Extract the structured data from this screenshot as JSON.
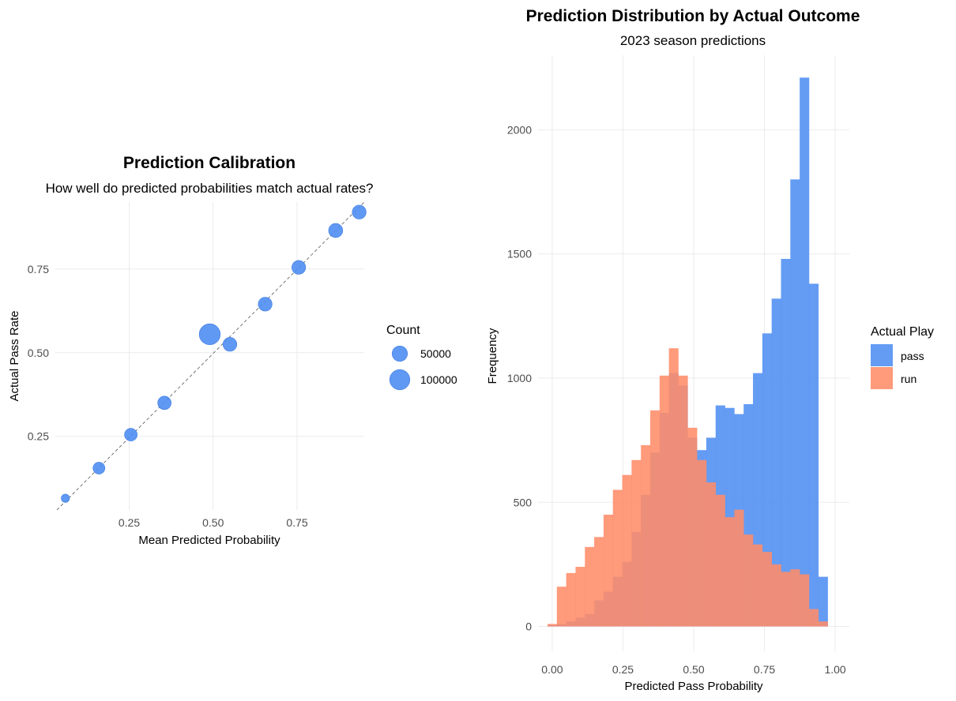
{
  "chart_data": [
    {
      "type": "scatter",
      "title": "Prediction Calibration",
      "subtitle": "How well do predicted probabilities match actual rates?",
      "xlabel": "Mean Predicted Probability",
      "ylabel": "Actual Pass Rate",
      "xlim": [
        0.03,
        0.95
      ],
      "ylim": [
        0.03,
        0.95
      ],
      "xticks": [
        "0.25",
        "0.50",
        "0.75"
      ],
      "yticks": [
        "0.25",
        "0.50",
        "0.75"
      ],
      "reference_line": "dashed identity line y = x",
      "point_color": "#4f8ef2",
      "grid": true,
      "legend": {
        "title": "Count",
        "placement": "right",
        "entries": [
          {
            "label": "50000",
            "value": 50000
          },
          {
            "label": "100000",
            "value": 100000
          }
        ]
      },
      "points": [
        {
          "x": 0.06,
          "y": 0.065,
          "count": 8000
        },
        {
          "x": 0.16,
          "y": 0.155,
          "count": 25000
        },
        {
          "x": 0.255,
          "y": 0.255,
          "count": 30000
        },
        {
          "x": 0.355,
          "y": 0.35,
          "count": 35000
        },
        {
          "x": 0.49,
          "y": 0.555,
          "count": 110000
        },
        {
          "x": 0.55,
          "y": 0.525,
          "count": 38000
        },
        {
          "x": 0.655,
          "y": 0.645,
          "count": 38000
        },
        {
          "x": 0.755,
          "y": 0.755,
          "count": 38000
        },
        {
          "x": 0.865,
          "y": 0.865,
          "count": 40000
        },
        {
          "x": 0.935,
          "y": 0.92,
          "count": 38000
        }
      ]
    },
    {
      "type": "histogram",
      "title": "Prediction Distribution by Actual Outcome",
      "subtitle": "2023 season predictions",
      "xlabel": "Predicted Pass Probability",
      "ylabel": "Frequency",
      "xlim": [
        -0.05,
        1.05
      ],
      "ylim": [
        -100,
        2300
      ],
      "xticks": [
        "0.00",
        "0.25",
        "0.50",
        "0.75",
        "1.00"
      ],
      "yticks": [
        "0",
        "500",
        "1000",
        "1500",
        "2000"
      ],
      "grid": true,
      "bin_width": 0.033,
      "bins_start": -0.0165,
      "legend": {
        "title": "Actual Play",
        "placement": "right",
        "entries": [
          {
            "label": "pass",
            "color": "#4f8ef2"
          },
          {
            "label": "run",
            "color": "#ff8c69"
          }
        ]
      },
      "series": [
        {
          "name": "pass",
          "color": "#4f8ef2",
          "values": [
            5,
            10,
            20,
            35,
            50,
            105,
            140,
            200,
            260,
            380,
            530,
            700,
            860,
            1020,
            970,
            760,
            710,
            760,
            890,
            880,
            855,
            895,
            1020,
            1180,
            1320,
            1480,
            1800,
            2210,
            1380,
            200
          ]
        },
        {
          "name": "run",
          "color": "#ff8c69",
          "values": [
            10,
            160,
            215,
            240,
            320,
            360,
            450,
            550,
            610,
            670,
            730,
            870,
            1010,
            1120,
            1010,
            800,
            670,
            580,
            530,
            440,
            470,
            370,
            330,
            300,
            250,
            220,
            230,
            210,
            70,
            20
          ]
        }
      ]
    }
  ]
}
